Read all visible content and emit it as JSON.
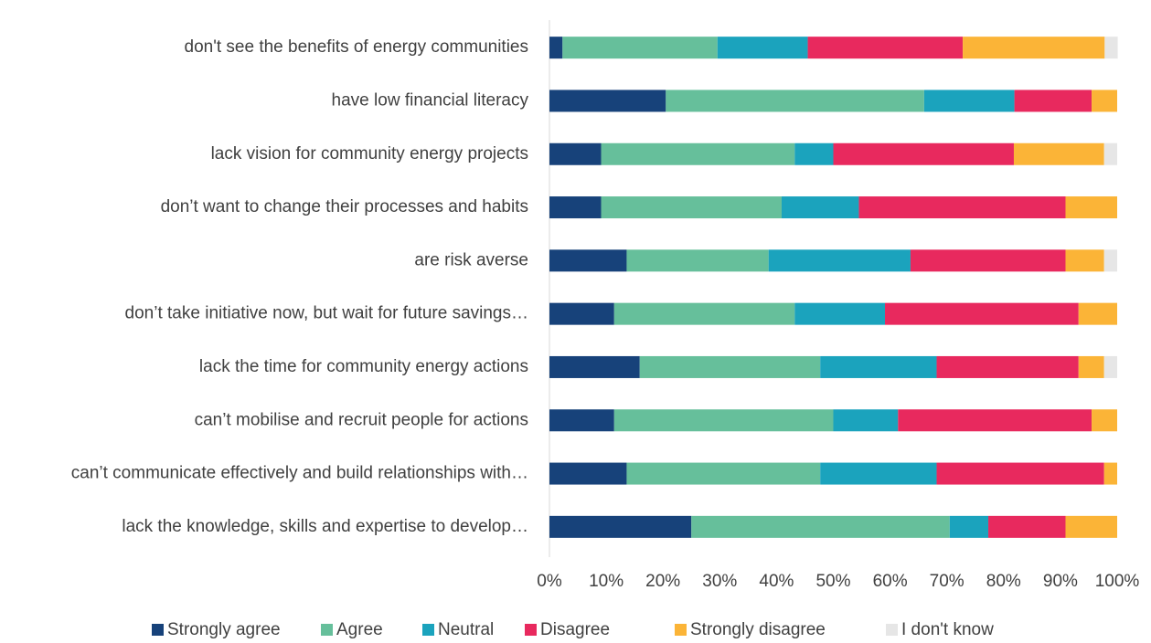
{
  "chart_data": {
    "type": "stacked_barh",
    "categories": [
      "don't see the benefits of energy communities",
      "have low financial literacy",
      "lack vision for community energy projects",
      "don’t want to change their processes and habits",
      "are risk averse",
      "don’t take initiative now, but wait for future savings…",
      "lack the time for community energy actions",
      "can’t mobilise and recruit people for actions",
      "can’t communicate effectively and build relationships with…",
      "lack the knowledge, skills and expertise to develop…"
    ],
    "series": [
      {
        "name": "Strongly agree",
        "color": "#17427a",
        "values": [
          2.3,
          20.5,
          9.1,
          9.1,
          13.6,
          11.4,
          15.9,
          11.4,
          13.6,
          25.0
        ]
      },
      {
        "name": "Agree",
        "color": "#66bf9b",
        "values": [
          27.3,
          45.5,
          34.1,
          31.8,
          25.0,
          31.8,
          31.8,
          38.6,
          34.1,
          45.5
        ]
      },
      {
        "name": "Neutral",
        "color": "#1ba3bd",
        "values": [
          15.9,
          15.9,
          6.8,
          13.6,
          25.0,
          15.9,
          20.5,
          11.4,
          20.5,
          6.8
        ]
      },
      {
        "name": "Disagree",
        "color": "#e8295e",
        "values": [
          27.3,
          13.6,
          31.8,
          36.4,
          27.3,
          34.1,
          25.0,
          34.1,
          29.5,
          13.6
        ]
      },
      {
        "name": "Strongly disagree",
        "color": "#fbb437",
        "values": [
          25.0,
          4.5,
          15.9,
          9.1,
          6.8,
          6.8,
          4.5,
          4.5,
          2.3,
          9.1
        ]
      },
      {
        "name": "I don't know",
        "color": "#e6e6e6",
        "values": [
          2.3,
          0,
          2.3,
          0,
          2.3,
          0,
          2.3,
          0,
          0,
          0
        ]
      }
    ],
    "xlim": [
      0,
      100
    ],
    "xticks": [
      {
        "value": 0,
        "label": "0%"
      },
      {
        "value": 10,
        "label": "10%"
      },
      {
        "value": 20,
        "label": "20%"
      },
      {
        "value": 30,
        "label": "30%"
      },
      {
        "value": 40,
        "label": "40%"
      },
      {
        "value": 50,
        "label": "50%"
      },
      {
        "value": 60,
        "label": "60%"
      },
      {
        "value": 70,
        "label": "70%"
      },
      {
        "value": 80,
        "label": "80%"
      },
      {
        "value": 90,
        "label": "90%"
      },
      {
        "value": 100,
        "label": "100%"
      }
    ],
    "legend": "bottom"
  }
}
